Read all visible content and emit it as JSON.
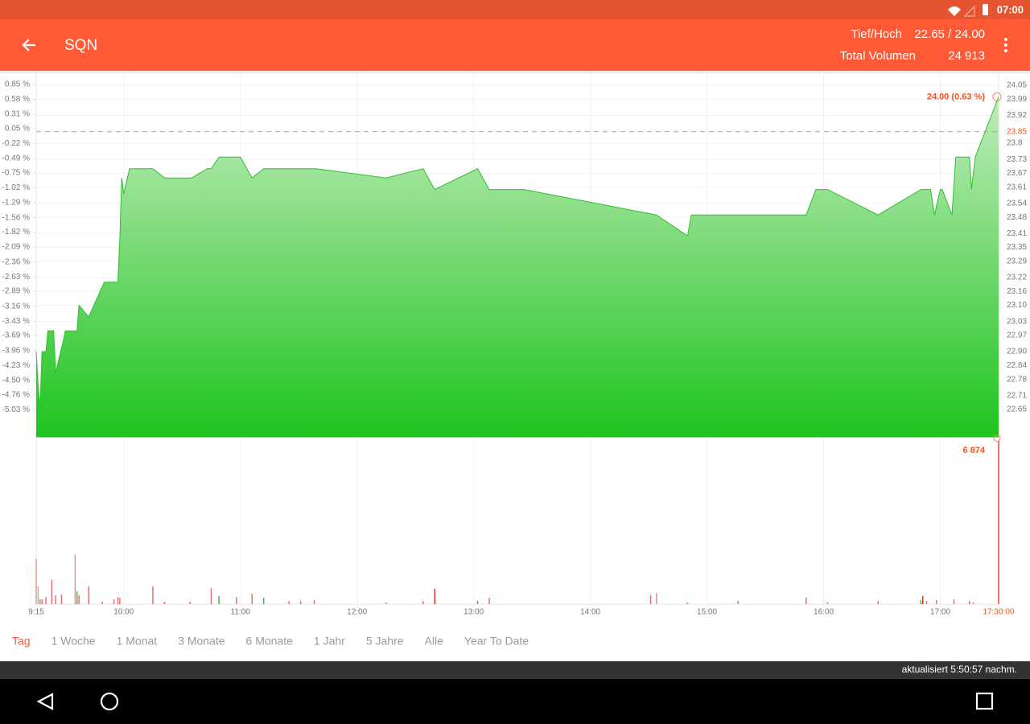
{
  "status_bar": {
    "time": "07:00"
  },
  "app_bar": {
    "title": "SQN",
    "range_label": "Tief/Hoch",
    "range_value": "22.65 / 24.00",
    "volume_label": "Total Volumen",
    "volume_value": "24 913"
  },
  "chart_data": {
    "type": "area",
    "color": "#2ec02e",
    "grid": true,
    "x": [
      555,
      556,
      557,
      558,
      560,
      561,
      564,
      565,
      569,
      570,
      576,
      577,
      579,
      582,
      590,
      597,
      598,
      599,
      600,
      603,
      615,
      621,
      635,
      643,
      645,
      649,
      660,
      666,
      672,
      699,
      735,
      754,
      760,
      782,
      788,
      806,
      874,
      890,
      892,
      951,
      956,
      962,
      988,
      1010,
      1015,
      1017,
      1020,
      1021,
      1026,
      1028,
      1035,
      1036,
      1038,
      1050
    ],
    "values": [
      22.9,
      22.75,
      22.66,
      22.9,
      22.9,
      22.99,
      22.99,
      22.81,
      22.95,
      22.99,
      22.99,
      23.1,
      23.08,
      23.05,
      23.2,
      23.2,
      23.39,
      23.65,
      23.58,
      23.69,
      23.69,
      23.65,
      23.65,
      23.69,
      23.69,
      23.74,
      23.74,
      23.65,
      23.69,
      23.69,
      23.65,
      23.69,
      23.6,
      23.69,
      23.6,
      23.6,
      23.49,
      23.4,
      23.49,
      23.49,
      23.6,
      23.6,
      23.49,
      23.6,
      23.6,
      23.49,
      23.6,
      23.6,
      23.49,
      23.74,
      23.74,
      23.6,
      23.74,
      24.0
    ],
    "xlim": [
      555,
      1050
    ],
    "xticks": [
      {
        "value": 555,
        "label": "9:15"
      },
      {
        "value": 600,
        "label": "10:00"
      },
      {
        "value": 660,
        "label": "11:00"
      },
      {
        "value": 720,
        "label": "12:00"
      },
      {
        "value": 780,
        "label": "13:00"
      },
      {
        "value": 840,
        "label": "14:00"
      },
      {
        "value": 900,
        "label": "15:00"
      },
      {
        "value": 960,
        "label": "16:00"
      },
      {
        "value": 1020,
        "label": "17:00"
      }
    ],
    "cursor": {
      "value": 1050,
      "label": "17:30:00"
    },
    "ylim": [
      22.53,
      24.08
    ],
    "yticks": [
      24.05,
      23.99,
      23.92,
      23.8,
      23.73,
      23.67,
      23.61,
      23.54,
      23.48,
      23.41,
      23.35,
      23.29,
      23.22,
      23.16,
      {
        "value": 23.1,
        "label": "23.10"
      },
      23.03,
      22.97,
      {
        "value": 22.9,
        "label": "22.90"
      },
      22.84,
      22.78,
      22.71,
      22.65
    ],
    "y2lim": [
      -5.53,
      0.96
    ],
    "y2ticks": [
      {
        "value": 0.85,
        "label": "0.85 %"
      },
      {
        "value": 0.58,
        "label": "0.58 %"
      },
      {
        "value": 0.31,
        "label": "0.31 %"
      },
      {
        "value": 0.05,
        "label": "0.05 %"
      },
      {
        "value": -0.22,
        "label": "-0.22 %"
      },
      {
        "value": -0.49,
        "label": "-0.49 %"
      },
      {
        "value": -0.75,
        "label": "-0.75 %"
      },
      {
        "value": -1.02,
        "label": "-1.02 %"
      },
      {
        "value": -1.29,
        "label": "-1.29 %"
      },
      {
        "value": -1.56,
        "label": "-1.56 %"
      },
      {
        "value": -1.82,
        "label": "-1.82 %"
      },
      {
        "value": -2.09,
        "label": "-2.09 %"
      },
      {
        "value": -2.36,
        "label": "-2.36 %"
      },
      {
        "value": -2.63,
        "label": "-2.63 %"
      },
      {
        "value": -2.89,
        "label": "-2.89 %"
      },
      {
        "value": -3.16,
        "label": "-3.16 %"
      },
      {
        "value": -3.43,
        "label": "-3.43 %"
      },
      {
        "value": -3.69,
        "label": "-3.69 %"
      },
      {
        "value": -3.96,
        "label": "-3.96 %"
      },
      {
        "value": -4.23,
        "label": "-4.23 %"
      },
      {
        "value": -4.5,
        "label": "-4.50 %"
      },
      {
        "value": -4.76,
        "label": "-4.76 %"
      },
      {
        "value": -5.03,
        "label": "-5.03 %"
      }
    ],
    "reference_line": 23.85,
    "last_label": {
      "value": 24.0,
      "label": "24.00 (0.63 %)"
    },
    "volume": {
      "x": [
        555,
        556,
        557,
        558,
        560,
        563,
        565,
        568,
        575,
        576,
        577,
        582,
        589,
        595,
        597,
        598,
        615,
        621,
        634,
        645,
        649,
        658,
        666,
        672,
        685,
        691,
        698,
        735,
        754,
        760,
        782,
        788,
        871,
        874,
        890,
        916,
        951,
        962,
        988,
        1010,
        1011,
        1013,
        1018,
        1027,
        1035,
        1037,
        1050
      ],
      "values": [
        1900,
        750,
        200,
        200,
        300,
        1020,
        370,
        400,
        2070,
        540,
        370,
        750,
        100,
        200,
        300,
        270,
        750,
        100,
        100,
        680,
        340,
        300,
        440,
        270,
        135,
        135,
        170,
        70,
        135,
        640,
        135,
        270,
        370,
        470,
        70,
        135,
        270,
        70,
        135,
        170,
        340,
        135,
        170,
        200,
        135,
        70,
        6874
      ],
      "colors": [
        "#ef8f8f",
        "#7fd37f",
        "#e57373",
        "#e57373",
        "#e57373",
        "#e57373",
        "#e57373",
        "#e57373",
        "#ef8f8f",
        "#4caf50",
        "#e57373",
        "#e57373",
        "#e57373",
        "#e57373",
        "#e57373",
        "#e57373",
        "#e57373",
        "#e57373",
        "#e57373",
        "#e57373",
        "#4caf50",
        "#e57373",
        "#e57373",
        "#4caf50",
        "#e57373",
        "#e57373",
        "#e57373",
        "#e57373",
        "#e57373",
        "#d32f2f",
        "#4caf50",
        "#e57373",
        "#e57373",
        "#ef8f8f",
        "#e57373",
        "#e57373",
        "#e57373",
        "#e57373",
        "#e57373",
        "#4caf50",
        "#d32f2f",
        "#e57373",
        "#e57373",
        "#e57373",
        "#e57373",
        "#e57373",
        "#f44336"
      ],
      "ylim": [
        0,
        6874
      ],
      "yticks": [
        {
          "value": 6874,
          "label": "6 874"
        }
      ]
    }
  },
  "tabs": [
    "Tag",
    "1 Woche",
    "1 Monat",
    "3 Monate",
    "6 Monate",
    "1 Jahr",
    "5 Jahre",
    "Alle",
    "Year To Date"
  ],
  "active_tab": 0,
  "footer": {
    "updated": "aktualisiert 5:50:57 nachm."
  }
}
